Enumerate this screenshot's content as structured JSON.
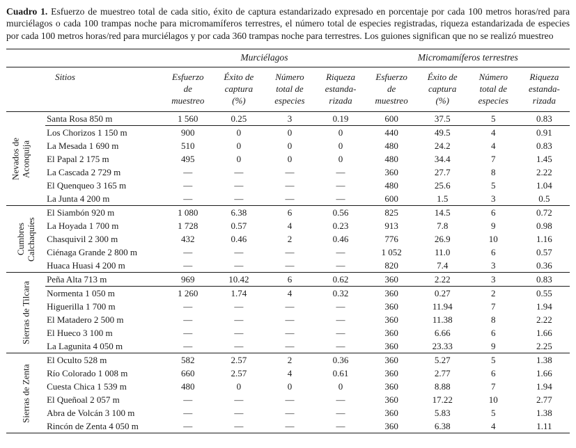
{
  "caption": {
    "label": "Cuadro 1.",
    "text": "Esfuerzo de muestreo total de cada sitio, éxito de captura estandarizado expresado en porcentaje por cada 100 metros horas/red para murciélagos o cada 100 trampas noche para micromamíferos terrestres, el número total de especies registradas, riqueza estandarizada de especies por cada 100 metros horas/red para murciélagos y por cada 360 trampas noche para terrestres. Los guiones significan que no se realizó muestreo"
  },
  "table": {
    "span_headers": {
      "bats": "Murciélagos",
      "micro": "Micromamíferos terrestres"
    },
    "col_headers": {
      "sitios": "Sitios",
      "metrics": [
        "Esfuerzo\nde\nmuestreo",
        "Éxito de\ncaptura\n(%)",
        "Número\ntotal de\nespecies",
        "Riqueza\nestanda-\nrizada"
      ]
    },
    "groups": [
      {
        "label": "Nevados de\nAconquija",
        "rows": [
          {
            "site": "Santa Rosa 850 m",
            "values": [
              "1 560",
              "0.25",
              "3",
              "0.19",
              "600",
              "37.5",
              "5",
              "0.83"
            ],
            "divider_after": true
          },
          {
            "site": "Los Chorizos 1 150 m",
            "values": [
              "900",
              "0",
              "0",
              "0",
              "440",
              "49.5",
              "4",
              "0.91"
            ]
          },
          {
            "site": "La Mesada 1 690 m",
            "values": [
              "510",
              "0",
              "0",
              "0",
              "480",
              "24.2",
              "4",
              "0.83"
            ]
          },
          {
            "site": "El Papal 2 175 m",
            "values": [
              "495",
              "0",
              "0",
              "0",
              "480",
              "34.4",
              "7",
              "1.45"
            ]
          },
          {
            "site": "La Cascada 2 729 m",
            "values": [
              "—",
              "—",
              "—",
              "—",
              "360",
              "27.7",
              "8",
              "2.22"
            ]
          },
          {
            "site": "El Quenqueo 3 165 m",
            "values": [
              "—",
              "—",
              "—",
              "—",
              "480",
              "25.6",
              "5",
              "1.04"
            ]
          },
          {
            "site": "La Junta 4 200 m",
            "values": [
              "—",
              "—",
              "—",
              "—",
              "600",
              "1.5",
              "3",
              "0.5"
            ]
          }
        ]
      },
      {
        "label": "Cumbres\nCalchaquíes",
        "rows": [
          {
            "site": "El Siambón 920 m",
            "values": [
              "1 080",
              "6.38",
              "6",
              "0.56",
              "825",
              "14.5",
              "6",
              "0.72"
            ]
          },
          {
            "site": "La Hoyada 1 700 m",
            "values": [
              "1 728",
              "0.57",
              "4",
              "0.23",
              "913",
              "7.8",
              "9",
              "0.98"
            ]
          },
          {
            "site": "Chasquivil 2 300 m",
            "values": [
              "432",
              "0.46",
              "2",
              "0.46",
              "776",
              "26.9",
              "10",
              "1.16"
            ]
          },
          {
            "site": "Ciénaga Grande 2 800 m",
            "values": [
              "—",
              "—",
              "—",
              "—",
              "1 052",
              "11.0",
              "6",
              "0.57"
            ]
          },
          {
            "site": "Huaca Huasi 4 200 m",
            "values": [
              "—",
              "—",
              "—",
              "—",
              "820",
              "7.4",
              "3",
              "0.36"
            ]
          }
        ]
      },
      {
        "label": "Sierras de Tilcara",
        "rows": [
          {
            "site": "Peña Alta 713 m",
            "values": [
              "969",
              "10.42",
              "6",
              "0.62",
              "360",
              "2.22",
              "3",
              "0.83"
            ],
            "divider_after": true
          },
          {
            "site": "Normenta 1 050 m",
            "values": [
              "1 260",
              "1.74",
              "4",
              "0.32",
              "360",
              "0.27",
              "2",
              "0.55"
            ]
          },
          {
            "site": "Higuerilla 1 700 m",
            "values": [
              "—",
              "—",
              "—",
              "—",
              "360",
              "11.94",
              "7",
              "1.94"
            ]
          },
          {
            "site": "El Matadero 2 500 m",
            "values": [
              "—",
              "—",
              "—",
              "—",
              "360",
              "11.38",
              "8",
              "2.22"
            ]
          },
          {
            "site": "El Hueco 3 100 m",
            "values": [
              "—",
              "—",
              "—",
              "—",
              "360",
              "6.66",
              "6",
              "1.66"
            ]
          },
          {
            "site": "La Lagunita 4 050 m",
            "values": [
              "—",
              "—",
              "—",
              "—",
              "360",
              "23.33",
              "9",
              "2.25"
            ]
          }
        ]
      },
      {
        "label": "Sierras de Zenta",
        "rows": [
          {
            "site": "El Oculto 528 m",
            "values": [
              "582",
              "2.57",
              "2",
              "0.36",
              "360",
              "5.27",
              "5",
              "1.38"
            ]
          },
          {
            "site": "Río Colorado 1 008 m",
            "values": [
              "660",
              "2.57",
              "4",
              "0.61",
              "360",
              "2.77",
              "6",
              "1.66"
            ]
          },
          {
            "site": "Cuesta Chica 1 539 m",
            "values": [
              "480",
              "0",
              "0",
              "0",
              "360",
              "8.88",
              "7",
              "1.94"
            ]
          },
          {
            "site": "El Queñoal 2 057 m",
            "values": [
              "—",
              "—",
              "—",
              "—",
              "360",
              "17.22",
              "10",
              "2.77"
            ]
          },
          {
            "site": "Abra de Volcán 3 100 m",
            "values": [
              "—",
              "—",
              "—",
              "—",
              "360",
              "5.83",
              "5",
              "1.38"
            ]
          },
          {
            "site": "Rincón de Zenta 4 050 m",
            "values": [
              "—",
              "—",
              "—",
              "—",
              "360",
              "6.38",
              "4",
              "1.11"
            ]
          }
        ]
      }
    ]
  }
}
